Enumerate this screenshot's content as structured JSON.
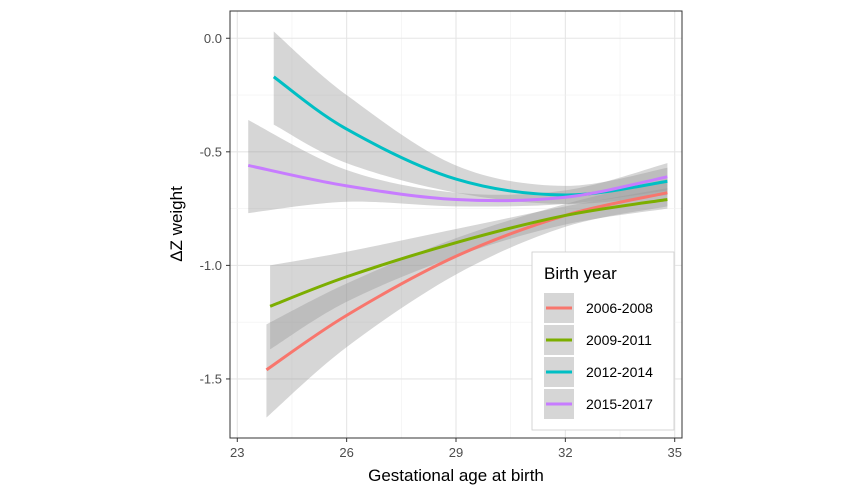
{
  "chart_data": {
    "type": "line",
    "xlabel": "Gestational age at birth",
    "ylabel": "ΔZ weight",
    "xlim": [
      22.8,
      35.2
    ],
    "ylim": [
      -1.76,
      0.12
    ],
    "x_ticks": [
      23,
      26,
      29,
      32,
      35
    ],
    "x_tick_labels": [
      "23",
      "26",
      "29",
      "32",
      "35"
    ],
    "y_ticks": [
      0.0,
      -0.5,
      -1.0,
      -1.5
    ],
    "y_tick_labels": [
      "0.0",
      "-0.5",
      "-1.0",
      "-1.5"
    ],
    "grid": true,
    "legend": {
      "title": "Birth year",
      "position": "bottom-right"
    },
    "series": [
      {
        "name": "2006-2008",
        "color": "#F8766D",
        "x": [
          23.8,
          26,
          29,
          32,
          34.8
        ],
        "y": [
          -1.46,
          -1.22,
          -0.96,
          -0.78,
          -0.68
        ],
        "lower": [
          -1.67,
          -1.36,
          -1.04,
          -0.83,
          -0.74
        ],
        "upper": [
          -1.26,
          -1.08,
          -0.88,
          -0.73,
          -0.62
        ]
      },
      {
        "name": "2009-2011",
        "color": "#7CAE00",
        "x": [
          23.9,
          26,
          29,
          32,
          34.8
        ],
        "y": [
          -1.18,
          -1.05,
          -0.9,
          -0.78,
          -0.71
        ],
        "lower": [
          -1.37,
          -1.16,
          -0.96,
          -0.82,
          -0.75
        ],
        "upper": [
          -1.0,
          -0.94,
          -0.84,
          -0.74,
          -0.66
        ]
      },
      {
        "name": "2012-2014",
        "color": "#00BFC4",
        "x": [
          24,
          26,
          29,
          32,
          34.8
        ],
        "y": [
          -0.17,
          -0.4,
          -0.62,
          -0.69,
          -0.63
        ],
        "lower": [
          -0.38,
          -0.55,
          -0.68,
          -0.73,
          -0.69
        ],
        "upper": [
          0.03,
          -0.25,
          -0.56,
          -0.65,
          -0.57
        ]
      },
      {
        "name": "2015-2017",
        "color": "#C77CFF",
        "x": [
          23.3,
          26,
          29,
          32,
          34.8
        ],
        "y": [
          -0.56,
          -0.65,
          -0.71,
          -0.7,
          -0.61
        ],
        "lower": [
          -0.77,
          -0.72,
          -0.74,
          -0.73,
          -0.67
        ],
        "upper": [
          -0.36,
          -0.58,
          -0.68,
          -0.67,
          -0.55
        ]
      }
    ]
  }
}
